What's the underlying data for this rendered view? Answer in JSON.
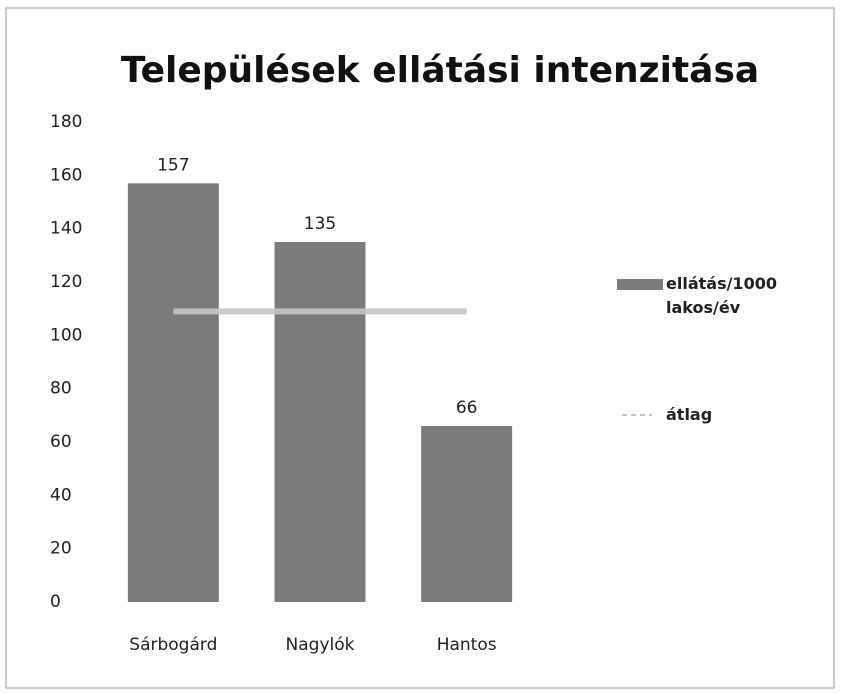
{
  "chart_data": {
    "type": "bar",
    "title": "Települések ellátási intenzitása",
    "categories": [
      "Sárbogárd",
      "Nagylók",
      "Hantos"
    ],
    "series": [
      {
        "name": "ellátás/1000 lakos/év",
        "type": "bar",
        "color": "#7b7b7b",
        "values": [
          157,
          135,
          66
        ]
      },
      {
        "name": "átlag",
        "type": "line",
        "color": "#c4c4c4",
        "values": [
          109,
          109,
          109
        ]
      }
    ],
    "ylim": [
      0,
      180
    ],
    "yticks": [
      0,
      20,
      40,
      60,
      80,
      100,
      120,
      140,
      160,
      180
    ],
    "grid": false,
    "legend": "right"
  }
}
